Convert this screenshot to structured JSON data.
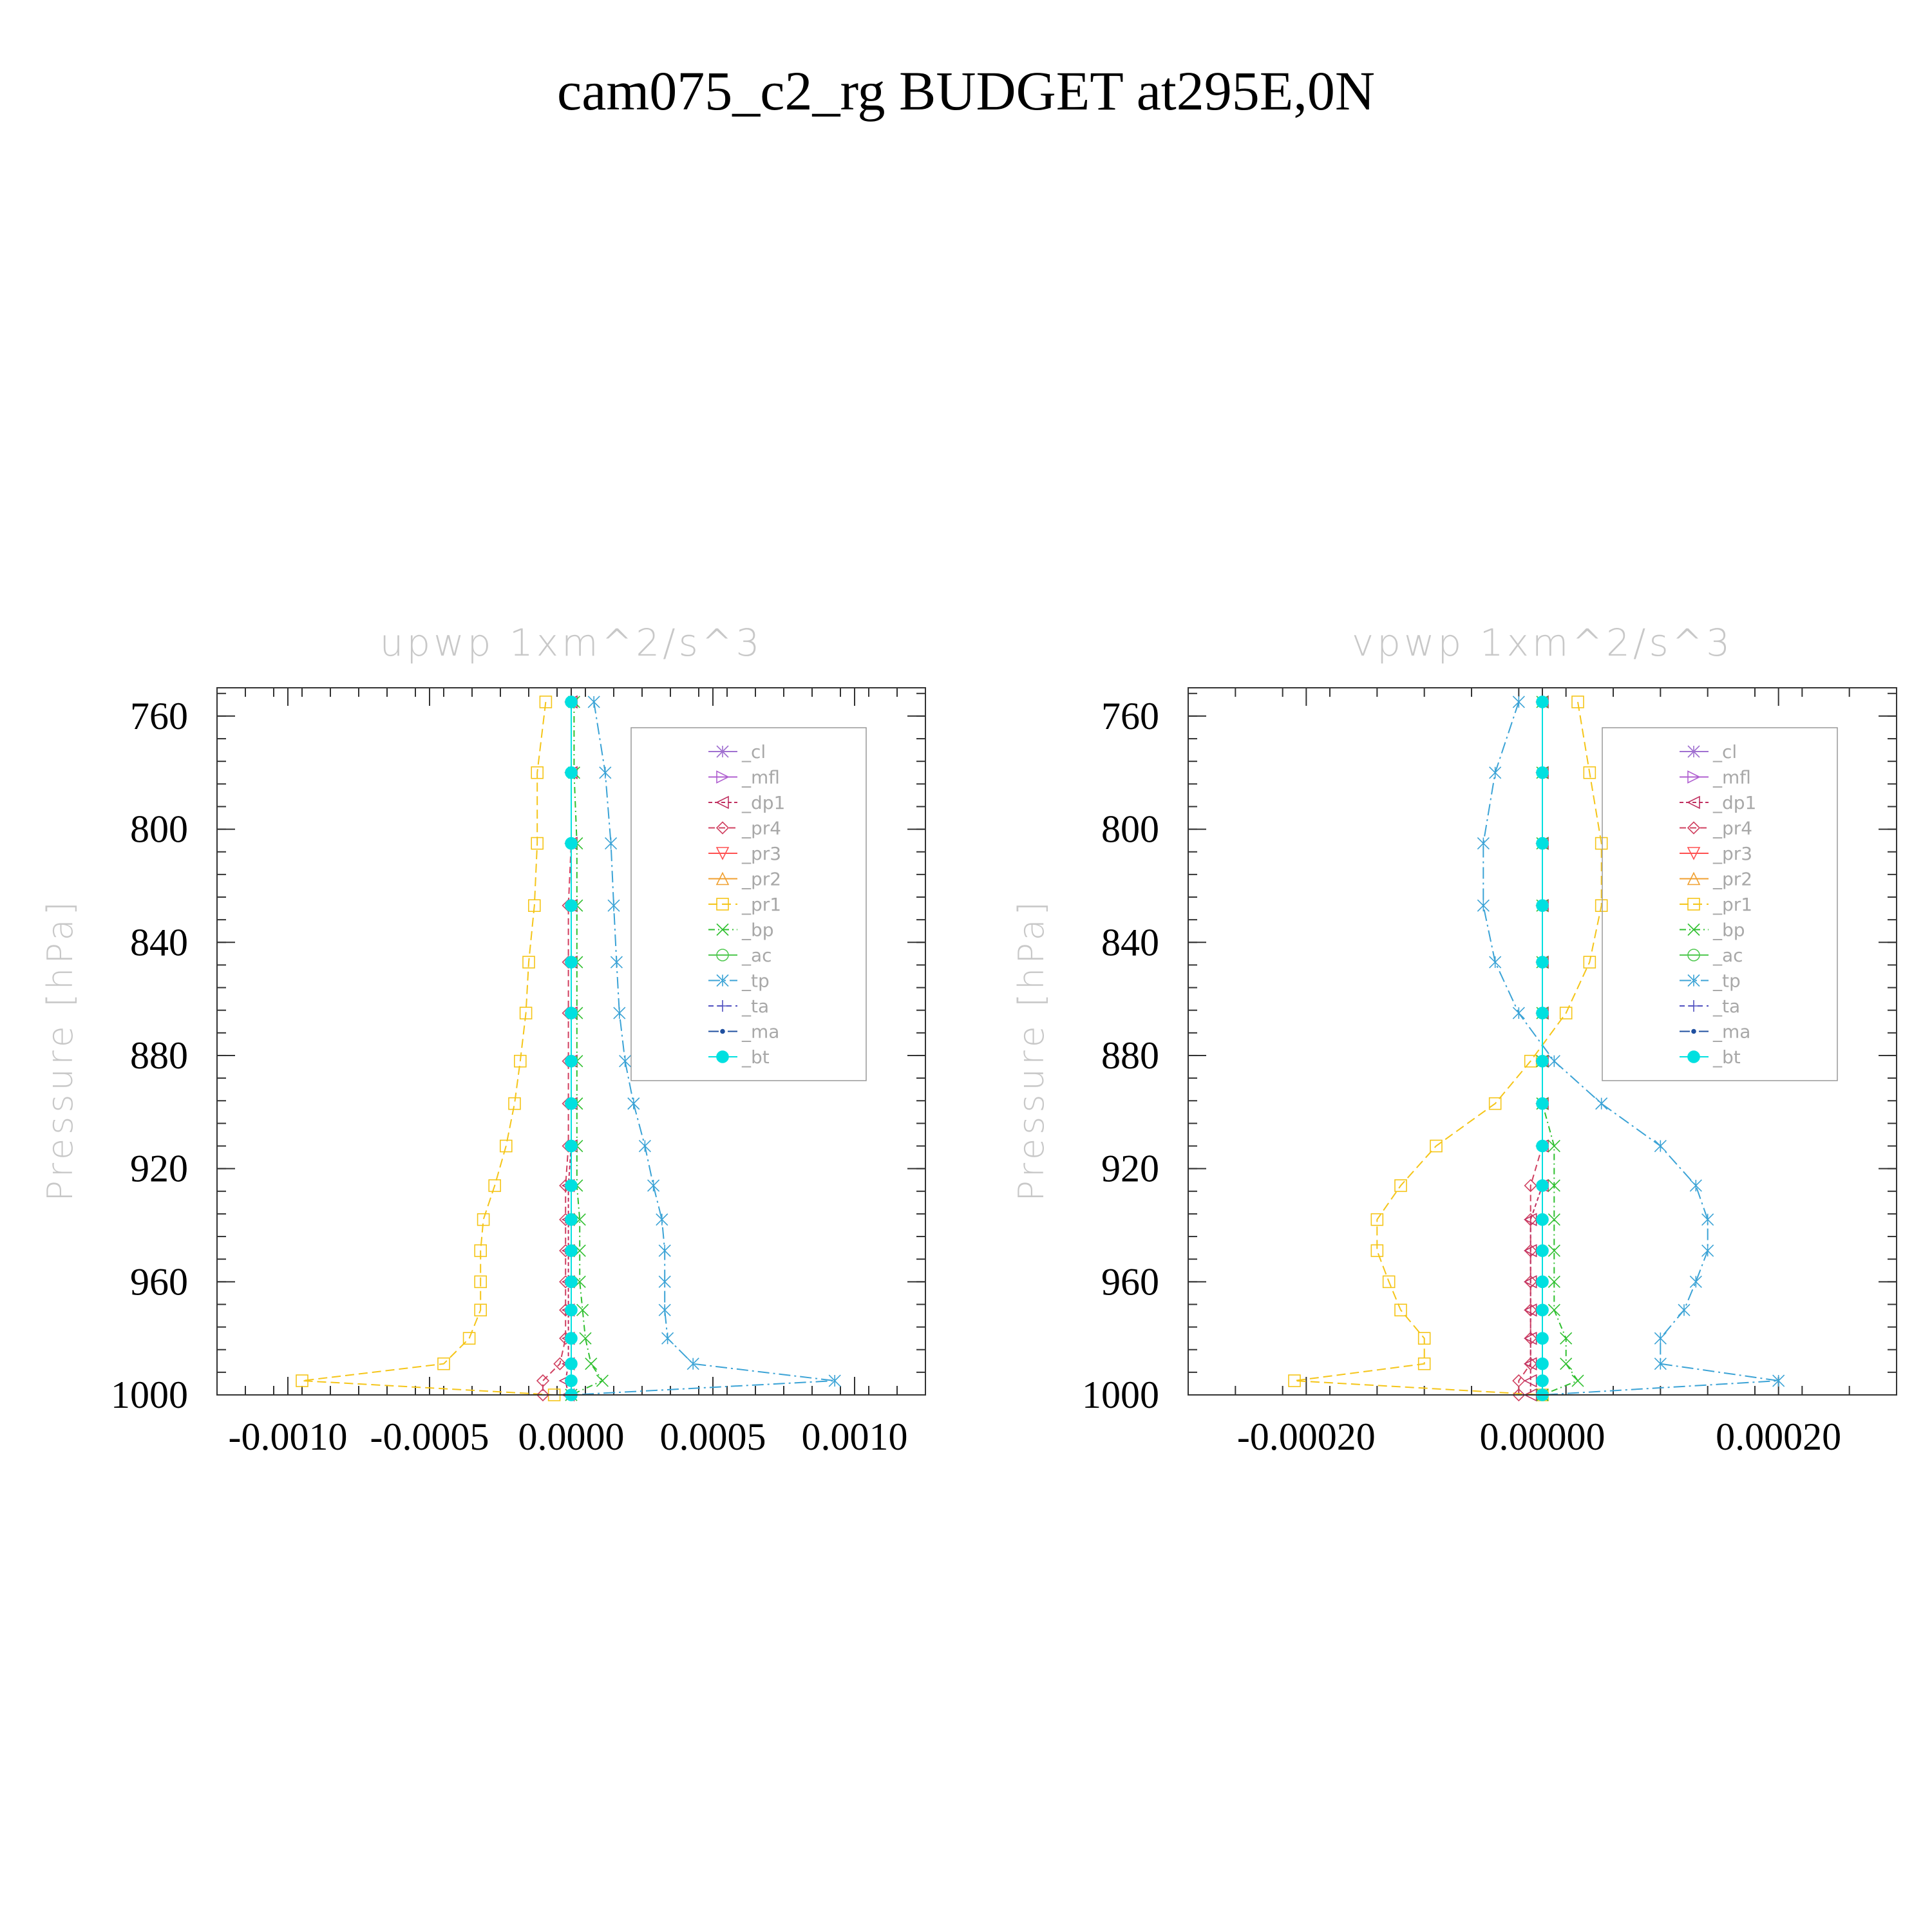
{
  "title": "cam075_c2_rg  BUDGET at295E,0N",
  "colors": {
    "_cl": "#a070d0",
    "_mfl": "#b060d0",
    "_dp1": "#c03060",
    "_pr4": "#d04060",
    "_pr3": "#ff5050",
    "_pr2": "#f0a030",
    "_pr1": "#f5c518",
    "_bp": "#30c030",
    "_ac": "#50c850",
    "_tp": "#3ba3d6",
    "_ta": "#5050c0",
    "_ma": "#2050a0",
    "_bt": "#00e0e0"
  },
  "legend_items": [
    {
      "key": "_cl",
      "label": "_cl",
      "marker": "star"
    },
    {
      "key": "_mfl",
      "label": "_mfl",
      "marker": "tri-right"
    },
    {
      "key": "_dp1",
      "label": "_dp1",
      "marker": "tri-left"
    },
    {
      "key": "_pr4",
      "label": "_pr4",
      "marker": "diamond"
    },
    {
      "key": "_pr3",
      "label": "_pr3",
      "marker": "tri-down"
    },
    {
      "key": "_pr2",
      "label": "_pr2",
      "marker": "tri-up"
    },
    {
      "key": "_pr1",
      "label": "_pr1",
      "marker": "square"
    },
    {
      "key": "_bp",
      "label": "_bp",
      "marker": "x"
    },
    {
      "key": "_ac",
      "label": "_ac",
      "marker": "circle"
    },
    {
      "key": "_tp",
      "label": "_tp",
      "marker": "asterisk"
    },
    {
      "key": "_ta",
      "label": "_ta",
      "marker": "plus"
    },
    {
      "key": "_ma",
      "label": "_ma",
      "marker": "dot"
    },
    {
      "key": "_bt",
      "label": "_bt",
      "marker": "filled-circle"
    }
  ],
  "chart_data": [
    {
      "type": "line",
      "title": "upwp   1xm^2/s^3",
      "ylabel": "Pressure [hPa]",
      "xlabel": "",
      "xlim": [
        -0.00125,
        0.00125
      ],
      "ylim": [
        750,
        1000
      ],
      "xticks": [
        -0.001,
        -0.0005,
        0.0,
        0.0005,
        0.001
      ],
      "xtick_labels": [
        "-0.0010",
        "-0.0005",
        "0.0000",
        "0.0005",
        "0.0010"
      ],
      "yticks": [
        760,
        800,
        840,
        880,
        920,
        960,
        1000
      ],
      "ytick_labels": [
        "760",
        "800",
        "840",
        "880",
        "920",
        "960",
        "1000"
      ],
      "pressure_levels": [
        755,
        780,
        805,
        827,
        847,
        865,
        882,
        897,
        912,
        926,
        938,
        949,
        960,
        970,
        980,
        989,
        995,
        1000
      ],
      "series": [
        {
          "name": "_pr1",
          "values": [
            -9e-05,
            -0.00012,
            -0.00012,
            -0.00013,
            -0.00015,
            -0.00016,
            -0.00018,
            -0.0002,
            -0.00023,
            -0.00027,
            -0.00031,
            -0.00032,
            -0.00032,
            -0.00032,
            -0.00036,
            -0.00045,
            -0.00095,
            -6e-05
          ]
        },
        {
          "name": "_tp",
          "values": [
            8e-05,
            0.00012,
            0.00014,
            0.00015,
            0.00016,
            0.00017,
            0.00019,
            0.00022,
            0.00026,
            0.00029,
            0.00032,
            0.00033,
            0.00033,
            0.00033,
            0.00034,
            0.00043,
            0.00093,
            0.0
          ]
        },
        {
          "name": "_pr4",
          "values": [
            0.0,
            0.0,
            0.0,
            -1e-05,
            -1e-05,
            -1e-05,
            -1e-05,
            -1e-05,
            -1e-05,
            -2e-05,
            -2e-05,
            -2e-05,
            -2e-05,
            -2e-05,
            -2e-05,
            -4e-05,
            -0.0001,
            -0.0001
          ]
        },
        {
          "name": "_dp1",
          "values": [
            0.0,
            0.0,
            0.0,
            0.0,
            0.0,
            0.0,
            0.0,
            0.0,
            0.0,
            -1e-05,
            -1e-05,
            -1e-05,
            -1e-05,
            -1e-05,
            -1e-05,
            -1e-05,
            -2e-05,
            -1e-05
          ]
        },
        {
          "name": "_bp",
          "values": [
            1e-05,
            1e-05,
            2e-05,
            2e-05,
            2e-05,
            2e-05,
            2e-05,
            2e-05,
            2e-05,
            2e-05,
            3e-05,
            3e-05,
            3e-05,
            4e-05,
            5e-05,
            7e-05,
            0.00011,
            0.0
          ]
        },
        {
          "name": "_ma",
          "values": [
            0.0,
            0.0,
            0.0,
            0.0,
            0.0,
            0.0,
            0.0,
            0.0,
            0.0,
            0.0,
            0.0,
            0.0,
            0.0,
            0.0,
            0.0,
            0.0,
            0.0,
            0.0
          ]
        },
        {
          "name": "_ta",
          "values": [
            0.0,
            0.0,
            0.0,
            0.0,
            0.0,
            0.0,
            0.0,
            0.0,
            0.0,
            0.0,
            0.0,
            0.0,
            0.0,
            0.0,
            0.0,
            0.0,
            0.0,
            0.0
          ]
        },
        {
          "name": "_bt",
          "values": [
            0.0,
            0.0,
            0.0,
            0.0,
            0.0,
            0.0,
            0.0,
            0.0,
            0.0,
            0.0,
            0.0,
            0.0,
            0.0,
            0.0,
            0.0,
            0.0,
            0.0,
            0.0
          ]
        }
      ]
    },
    {
      "type": "line",
      "title": "vpwp   1xm^2/s^3",
      "ylabel": "Pressure [hPa]",
      "xlabel": "",
      "xlim": [
        -0.0003,
        0.0003
      ],
      "ylim": [
        750,
        1000
      ],
      "xticks": [
        -0.0002,
        0.0,
        0.0002
      ],
      "xtick_labels": [
        "-0.00020",
        "0.00000",
        "0.00020"
      ],
      "yticks": [
        760,
        800,
        840,
        880,
        920,
        960,
        1000
      ],
      "ytick_labels": [
        "760",
        "800",
        "840",
        "880",
        "920",
        "960",
        "1000"
      ],
      "pressure_levels": [
        755,
        780,
        805,
        827,
        847,
        865,
        882,
        897,
        912,
        926,
        938,
        949,
        960,
        970,
        980,
        989,
        995,
        1000
      ],
      "series": [
        {
          "name": "_pr1",
          "values": [
            3e-05,
            4e-05,
            5e-05,
            5e-05,
            4e-05,
            2e-05,
            -1e-05,
            -4e-05,
            -9e-05,
            -0.00012,
            -0.00014,
            -0.00014,
            -0.00013,
            -0.00012,
            -0.0001,
            -0.0001,
            -0.00021,
            0.0
          ]
        },
        {
          "name": "_tp",
          "values": [
            -2e-05,
            -4e-05,
            -5e-05,
            -5e-05,
            -4e-05,
            -2e-05,
            1e-05,
            5e-05,
            0.0001,
            0.00013,
            0.00014,
            0.00014,
            0.00013,
            0.00012,
            0.0001,
            0.0001,
            0.0002,
            0.0
          ]
        },
        {
          "name": "_pr4",
          "values": [
            0.0,
            0.0,
            0.0,
            0.0,
            0.0,
            0.0,
            0.0,
            0.0,
            0.0,
            -1e-05,
            -1e-05,
            -1e-05,
            -1e-05,
            -1e-05,
            -1e-05,
            -1e-05,
            -2e-05,
            -2e-05
          ]
        },
        {
          "name": "_dp1",
          "values": [
            0.0,
            0.0,
            0.0,
            0.0,
            0.0,
            0.0,
            0.0,
            0.0,
            0.0,
            0.0,
            -1e-05,
            -1e-05,
            -1e-05,
            -1e-05,
            -1e-05,
            -1e-05,
            -1e-05,
            -1e-05
          ]
        },
        {
          "name": "_bp",
          "values": [
            0.0,
            0.0,
            0.0,
            0.0,
            0.0,
            0.0,
            0.0,
            0.0,
            1e-05,
            1e-05,
            1e-05,
            1e-05,
            1e-05,
            1e-05,
            2e-05,
            2e-05,
            3e-05,
            0.0
          ]
        },
        {
          "name": "_ma",
          "values": [
            0.0,
            0.0,
            0.0,
            0.0,
            0.0,
            0.0,
            0.0,
            0.0,
            0.0,
            0.0,
            0.0,
            0.0,
            0.0,
            0.0,
            0.0,
            0.0,
            0.0,
            0.0
          ]
        },
        {
          "name": "_ta",
          "values": [
            0.0,
            0.0,
            0.0,
            0.0,
            0.0,
            0.0,
            0.0,
            0.0,
            0.0,
            0.0,
            0.0,
            0.0,
            0.0,
            0.0,
            0.0,
            0.0,
            0.0,
            0.0
          ]
        },
        {
          "name": "_bt",
          "values": [
            0.0,
            0.0,
            0.0,
            0.0,
            0.0,
            0.0,
            0.0,
            0.0,
            0.0,
            0.0,
            0.0,
            0.0,
            0.0,
            0.0,
            0.0,
            0.0,
            0.0,
            0.0
          ]
        }
      ]
    }
  ]
}
